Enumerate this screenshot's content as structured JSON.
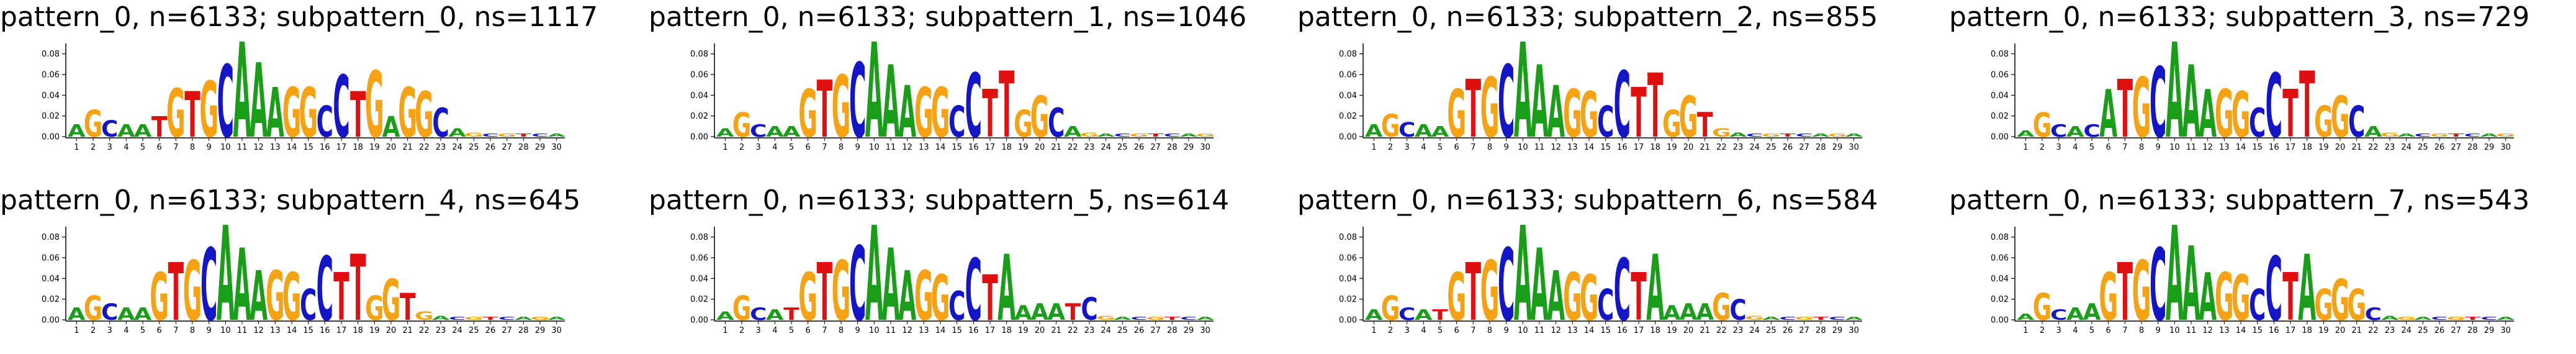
{
  "chart_data": [
    {
      "type": "sequence-logo",
      "title": "pattern_0, n=6133; subpattern_0, ns=1117",
      "ylim": [
        0,
        0.09
      ],
      "yticks": [
        "0.00",
        "0.02",
        "0.04",
        "0.06",
        "0.08"
      ],
      "positions": [
        "1",
        "2",
        "3",
        "4",
        "5",
        "6",
        "7",
        "8",
        "9",
        "10",
        "11",
        "12",
        "13",
        "14",
        "15",
        "16",
        "17",
        "18",
        "19",
        "20",
        "21",
        "22",
        "23",
        "24",
        "25",
        "26",
        "27",
        "28",
        "29",
        "30"
      ],
      "top_letters": [
        "A",
        "G",
        "C",
        "A",
        "A",
        "T",
        "G",
        "T",
        "G",
        "C",
        "A",
        "A",
        "A",
        "G",
        "G",
        "C",
        "C",
        "T",
        "G",
        "A",
        "G",
        "G",
        "C",
        "A",
        "G",
        "C",
        "G",
        "T",
        "C",
        "A"
      ],
      "heights": [
        0.012,
        0.026,
        0.016,
        0.012,
        0.012,
        0.02,
        0.047,
        0.044,
        0.054,
        0.07,
        0.092,
        0.072,
        0.048,
        0.048,
        0.048,
        0.03,
        0.06,
        0.044,
        0.064,
        0.02,
        0.048,
        0.044,
        0.028,
        0.008,
        0.004,
        0.003,
        0.003,
        0.003,
        0.003,
        0.003
      ]
    },
    {
      "type": "sequence-logo",
      "title": "pattern_0, n=6133; subpattern_1, ns=1046",
      "ylim": [
        0,
        0.09
      ],
      "yticks": [
        "0.00",
        "0.02",
        "0.04",
        "0.06",
        "0.08"
      ],
      "positions": [
        "1",
        "2",
        "3",
        "4",
        "5",
        "6",
        "7",
        "8",
        "9",
        "10",
        "11",
        "12",
        "13",
        "14",
        "15",
        "16",
        "17",
        "18",
        "19",
        "20",
        "21",
        "22",
        "23",
        "24",
        "25",
        "26",
        "27",
        "28",
        "29",
        "30"
      ],
      "top_letters": [
        "A",
        "G",
        "C",
        "A",
        "A",
        "G",
        "T",
        "G",
        "C",
        "A",
        "A",
        "A",
        "G",
        "G",
        "C",
        "C",
        "T",
        "T",
        "G",
        "G",
        "C",
        "A",
        "G",
        "A",
        "C",
        "G",
        "T",
        "C",
        "A",
        "G"
      ],
      "heights": [
        0.008,
        0.024,
        0.012,
        0.01,
        0.01,
        0.046,
        0.055,
        0.06,
        0.072,
        0.092,
        0.07,
        0.05,
        0.048,
        0.048,
        0.03,
        0.062,
        0.046,
        0.064,
        0.026,
        0.04,
        0.028,
        0.01,
        0.004,
        0.003,
        0.003,
        0.003,
        0.003,
        0.003,
        0.003,
        0.003
      ]
    },
    {
      "type": "sequence-logo",
      "title": "pattern_0, n=6133; subpattern_2, ns=855",
      "ylim": [
        0,
        0.09
      ],
      "yticks": [
        "0.00",
        "0.02",
        "0.04",
        "0.06",
        "0.08"
      ],
      "positions": [
        "1",
        "2",
        "3",
        "4",
        "5",
        "6",
        "7",
        "8",
        "9",
        "10",
        "11",
        "12",
        "13",
        "14",
        "15",
        "16",
        "17",
        "18",
        "19",
        "20",
        "21",
        "22",
        "23",
        "24",
        "25",
        "26",
        "27",
        "28",
        "29",
        "30"
      ],
      "top_letters": [
        "A",
        "G",
        "C",
        "A",
        "A",
        "G",
        "T",
        "G",
        "C",
        "A",
        "A",
        "A",
        "G",
        "G",
        "C",
        "C",
        "T",
        "T",
        "G",
        "G",
        "T",
        "G",
        "A",
        "C",
        "G",
        "T",
        "C",
        "A",
        "G",
        "A"
      ],
      "heights": [
        0.012,
        0.022,
        0.014,
        0.012,
        0.01,
        0.046,
        0.056,
        0.058,
        0.07,
        0.092,
        0.07,
        0.05,
        0.046,
        0.044,
        0.03,
        0.064,
        0.048,
        0.062,
        0.026,
        0.04,
        0.024,
        0.008,
        0.004,
        0.003,
        0.003,
        0.003,
        0.003,
        0.003,
        0.003,
        0.003
      ]
    },
    {
      "type": "sequence-logo",
      "title": "pattern_0, n=6133; subpattern_3, ns=729",
      "ylim": [
        0,
        0.09
      ],
      "yticks": [
        "0.00",
        "0.02",
        "0.04",
        "0.06",
        "0.08"
      ],
      "positions": [
        "1",
        "2",
        "3",
        "4",
        "5",
        "6",
        "7",
        "8",
        "9",
        "10",
        "11",
        "12",
        "13",
        "14",
        "15",
        "16",
        "17",
        "18",
        "19",
        "20",
        "21",
        "22",
        "23",
        "24",
        "25",
        "26",
        "27",
        "28",
        "29",
        "30"
      ],
      "top_letters": [
        "A",
        "G",
        "C",
        "A",
        "C",
        "A",
        "T",
        "G",
        "C",
        "A",
        "A",
        "A",
        "G",
        "G",
        "C",
        "C",
        "T",
        "T",
        "G",
        "G",
        "C",
        "A",
        "G",
        "A",
        "C",
        "G",
        "T",
        "C",
        "A",
        "G"
      ],
      "heights": [
        0.006,
        0.024,
        0.012,
        0.01,
        0.012,
        0.046,
        0.056,
        0.058,
        0.068,
        0.092,
        0.07,
        0.046,
        0.046,
        0.044,
        0.028,
        0.062,
        0.046,
        0.064,
        0.03,
        0.04,
        0.03,
        0.01,
        0.004,
        0.003,
        0.003,
        0.003,
        0.003,
        0.003,
        0.003,
        0.003
      ]
    },
    {
      "type": "sequence-logo",
      "title": "pattern_0, n=6133; subpattern_4, ns=645",
      "ylim": [
        0,
        0.09
      ],
      "yticks": [
        "0.00",
        "0.02",
        "0.04",
        "0.06",
        "0.08"
      ],
      "positions": [
        "1",
        "2",
        "3",
        "4",
        "5",
        "6",
        "7",
        "8",
        "9",
        "10",
        "11",
        "12",
        "13",
        "14",
        "15",
        "16",
        "17",
        "18",
        "19",
        "20",
        "21",
        "22",
        "23",
        "24",
        "25",
        "26",
        "27",
        "28",
        "29",
        "30"
      ],
      "top_letters": [
        "A",
        "G",
        "C",
        "A",
        "A",
        "G",
        "T",
        "G",
        "C",
        "A",
        "A",
        "A",
        "G",
        "G",
        "C",
        "C",
        "T",
        "T",
        "G",
        "G",
        "T",
        "G",
        "A",
        "C",
        "G",
        "T",
        "C",
        "A",
        "G",
        "A"
      ],
      "heights": [
        0.012,
        0.024,
        0.016,
        0.012,
        0.012,
        0.046,
        0.056,
        0.058,
        0.07,
        0.092,
        0.07,
        0.048,
        0.048,
        0.046,
        0.03,
        0.062,
        0.046,
        0.064,
        0.024,
        0.04,
        0.026,
        0.008,
        0.004,
        0.003,
        0.003,
        0.003,
        0.003,
        0.003,
        0.003,
        0.003
      ]
    },
    {
      "type": "sequence-logo",
      "title": "pattern_0, n=6133; subpattern_5, ns=614",
      "ylim": [
        0,
        0.09
      ],
      "yticks": [
        "0.00",
        "0.02",
        "0.04",
        "0.06",
        "0.08"
      ],
      "positions": [
        "1",
        "2",
        "3",
        "4",
        "5",
        "6",
        "7",
        "8",
        "9",
        "10",
        "11",
        "12",
        "13",
        "14",
        "15",
        "16",
        "17",
        "18",
        "19",
        "20",
        "21",
        "22",
        "23",
        "24",
        "25",
        "26",
        "27",
        "28",
        "29",
        "30"
      ],
      "top_letters": [
        "A",
        "G",
        "C",
        "A",
        "T",
        "G",
        "T",
        "G",
        "C",
        "A",
        "A",
        "A",
        "G",
        "G",
        "C",
        "C",
        "T",
        "A",
        "A",
        "A",
        "A",
        "T",
        "C",
        "G",
        "A",
        "C",
        "G",
        "T",
        "C",
        "A"
      ],
      "heights": [
        0.008,
        0.024,
        0.012,
        0.01,
        0.012,
        0.046,
        0.056,
        0.058,
        0.072,
        0.092,
        0.07,
        0.048,
        0.048,
        0.044,
        0.028,
        0.06,
        0.044,
        0.064,
        0.014,
        0.016,
        0.016,
        0.016,
        0.022,
        0.004,
        0.003,
        0.003,
        0.003,
        0.003,
        0.003,
        0.003
      ]
    },
    {
      "type": "sequence-logo",
      "title": "pattern_0, n=6133; subpattern_6, ns=584",
      "ylim": [
        0,
        0.09
      ],
      "yticks": [
        "0.00",
        "0.02",
        "0.04",
        "0.06",
        "0.08"
      ],
      "positions": [
        "1",
        "2",
        "3",
        "4",
        "5",
        "6",
        "7",
        "8",
        "9",
        "10",
        "11",
        "12",
        "13",
        "14",
        "15",
        "16",
        "17",
        "18",
        "19",
        "20",
        "21",
        "22",
        "23",
        "24",
        "25",
        "26",
        "27",
        "28",
        "29",
        "30"
      ],
      "top_letters": [
        "A",
        "G",
        "C",
        "A",
        "T",
        "G",
        "T",
        "G",
        "C",
        "A",
        "A",
        "A",
        "G",
        "G",
        "C",
        "C",
        "T",
        "A",
        "A",
        "A",
        "A",
        "G",
        "C",
        "G",
        "A",
        "C",
        "G",
        "T",
        "C",
        "A"
      ],
      "heights": [
        0.01,
        0.024,
        0.012,
        0.01,
        0.01,
        0.046,
        0.056,
        0.058,
        0.07,
        0.092,
        0.07,
        0.048,
        0.046,
        0.044,
        0.03,
        0.06,
        0.046,
        0.064,
        0.014,
        0.016,
        0.016,
        0.026,
        0.02,
        0.004,
        0.003,
        0.003,
        0.003,
        0.003,
        0.003,
        0.003
      ]
    },
    {
      "type": "sequence-logo",
      "title": "pattern_0, n=6133; subpattern_7, ns=543",
      "ylim": [
        0,
        0.09
      ],
      "yticks": [
        "0.00",
        "0.02",
        "0.04",
        "0.06",
        "0.08"
      ],
      "positions": [
        "1",
        "2",
        "3",
        "4",
        "5",
        "6",
        "7",
        "8",
        "9",
        "10",
        "11",
        "12",
        "13",
        "14",
        "15",
        "16",
        "17",
        "18",
        "19",
        "20",
        "21",
        "22",
        "23",
        "24",
        "25",
        "26",
        "27",
        "28",
        "29",
        "30"
      ],
      "top_letters": [
        "A",
        "G",
        "C",
        "A",
        "A",
        "G",
        "T",
        "G",
        "C",
        "A",
        "A",
        "A",
        "G",
        "G",
        "C",
        "C",
        "T",
        "A",
        "G",
        "G",
        "G",
        "C",
        "A",
        "G",
        "A",
        "C",
        "G",
        "T",
        "C",
        "A"
      ],
      "heights": [
        0.006,
        0.026,
        0.01,
        0.012,
        0.016,
        0.046,
        0.056,
        0.058,
        0.07,
        0.092,
        0.072,
        0.046,
        0.046,
        0.044,
        0.03,
        0.062,
        0.046,
        0.064,
        0.03,
        0.04,
        0.03,
        0.012,
        0.004,
        0.003,
        0.003,
        0.003,
        0.003,
        0.003,
        0.003,
        0.003
      ]
    }
  ],
  "colors": {
    "A": "#1a9e1a",
    "C": "#1515c8",
    "G": "#f5a315",
    "T": "#e01010"
  }
}
